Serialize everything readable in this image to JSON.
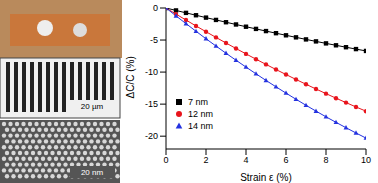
{
  "chart_data": {
    "type": "line",
    "xlabel": "Strain ε (%)",
    "ylabel": "ΔC/C (%)",
    "x": [
      0,
      0.5,
      1,
      1.5,
      2,
      2.5,
      3,
      3.5,
      4,
      4.5,
      5,
      5.5,
      6,
      6.5,
      7,
      7.5,
      8,
      8.5,
      9,
      9.5,
      10
    ],
    "xlim": [
      0,
      10
    ],
    "xticks": [
      0,
      2,
      4,
      6,
      8,
      10
    ],
    "ylim": [
      -22,
      0
    ],
    "yticks": [
      -20,
      -15,
      -10,
      -5,
      0
    ],
    "legend": "lower left",
    "series": [
      {
        "name": "7 nm",
        "color": "#000000",
        "marker": "square",
        "values": [
          0,
          -0.38,
          -0.76,
          -1.13,
          -1.5,
          -1.86,
          -2.22,
          -2.57,
          -2.92,
          -3.26,
          -3.6,
          -3.93,
          -4.26,
          -4.58,
          -4.9,
          -5.21,
          -5.52,
          -5.82,
          -6.12,
          -6.41,
          -6.7
        ]
      },
      {
        "name": "12 nm",
        "color": "#e8141c",
        "marker": "circle",
        "values": [
          0,
          -0.95,
          -1.88,
          -2.8,
          -3.7,
          -4.59,
          -5.46,
          -6.32,
          -7.16,
          -7.99,
          -8.8,
          -9.6,
          -10.38,
          -11.15,
          -11.9,
          -12.64,
          -13.36,
          -14.07,
          -14.76,
          -15.44,
          -16.1
        ]
      },
      {
        "name": "14 nm",
        "color": "#2432e0",
        "marker": "triangle",
        "values": [
          0,
          -1.23,
          -2.44,
          -3.63,
          -4.8,
          -5.94,
          -7.06,
          -8.15,
          -9.22,
          -10.27,
          -11.3,
          -12.3,
          -13.28,
          -14.24,
          -15.18,
          -16.09,
          -16.98,
          -17.84,
          -18.68,
          -19.5,
          -20.3
        ]
      }
    ]
  },
  "insets": {
    "scale_bars": [
      "20 µm",
      "20 nm"
    ]
  }
}
